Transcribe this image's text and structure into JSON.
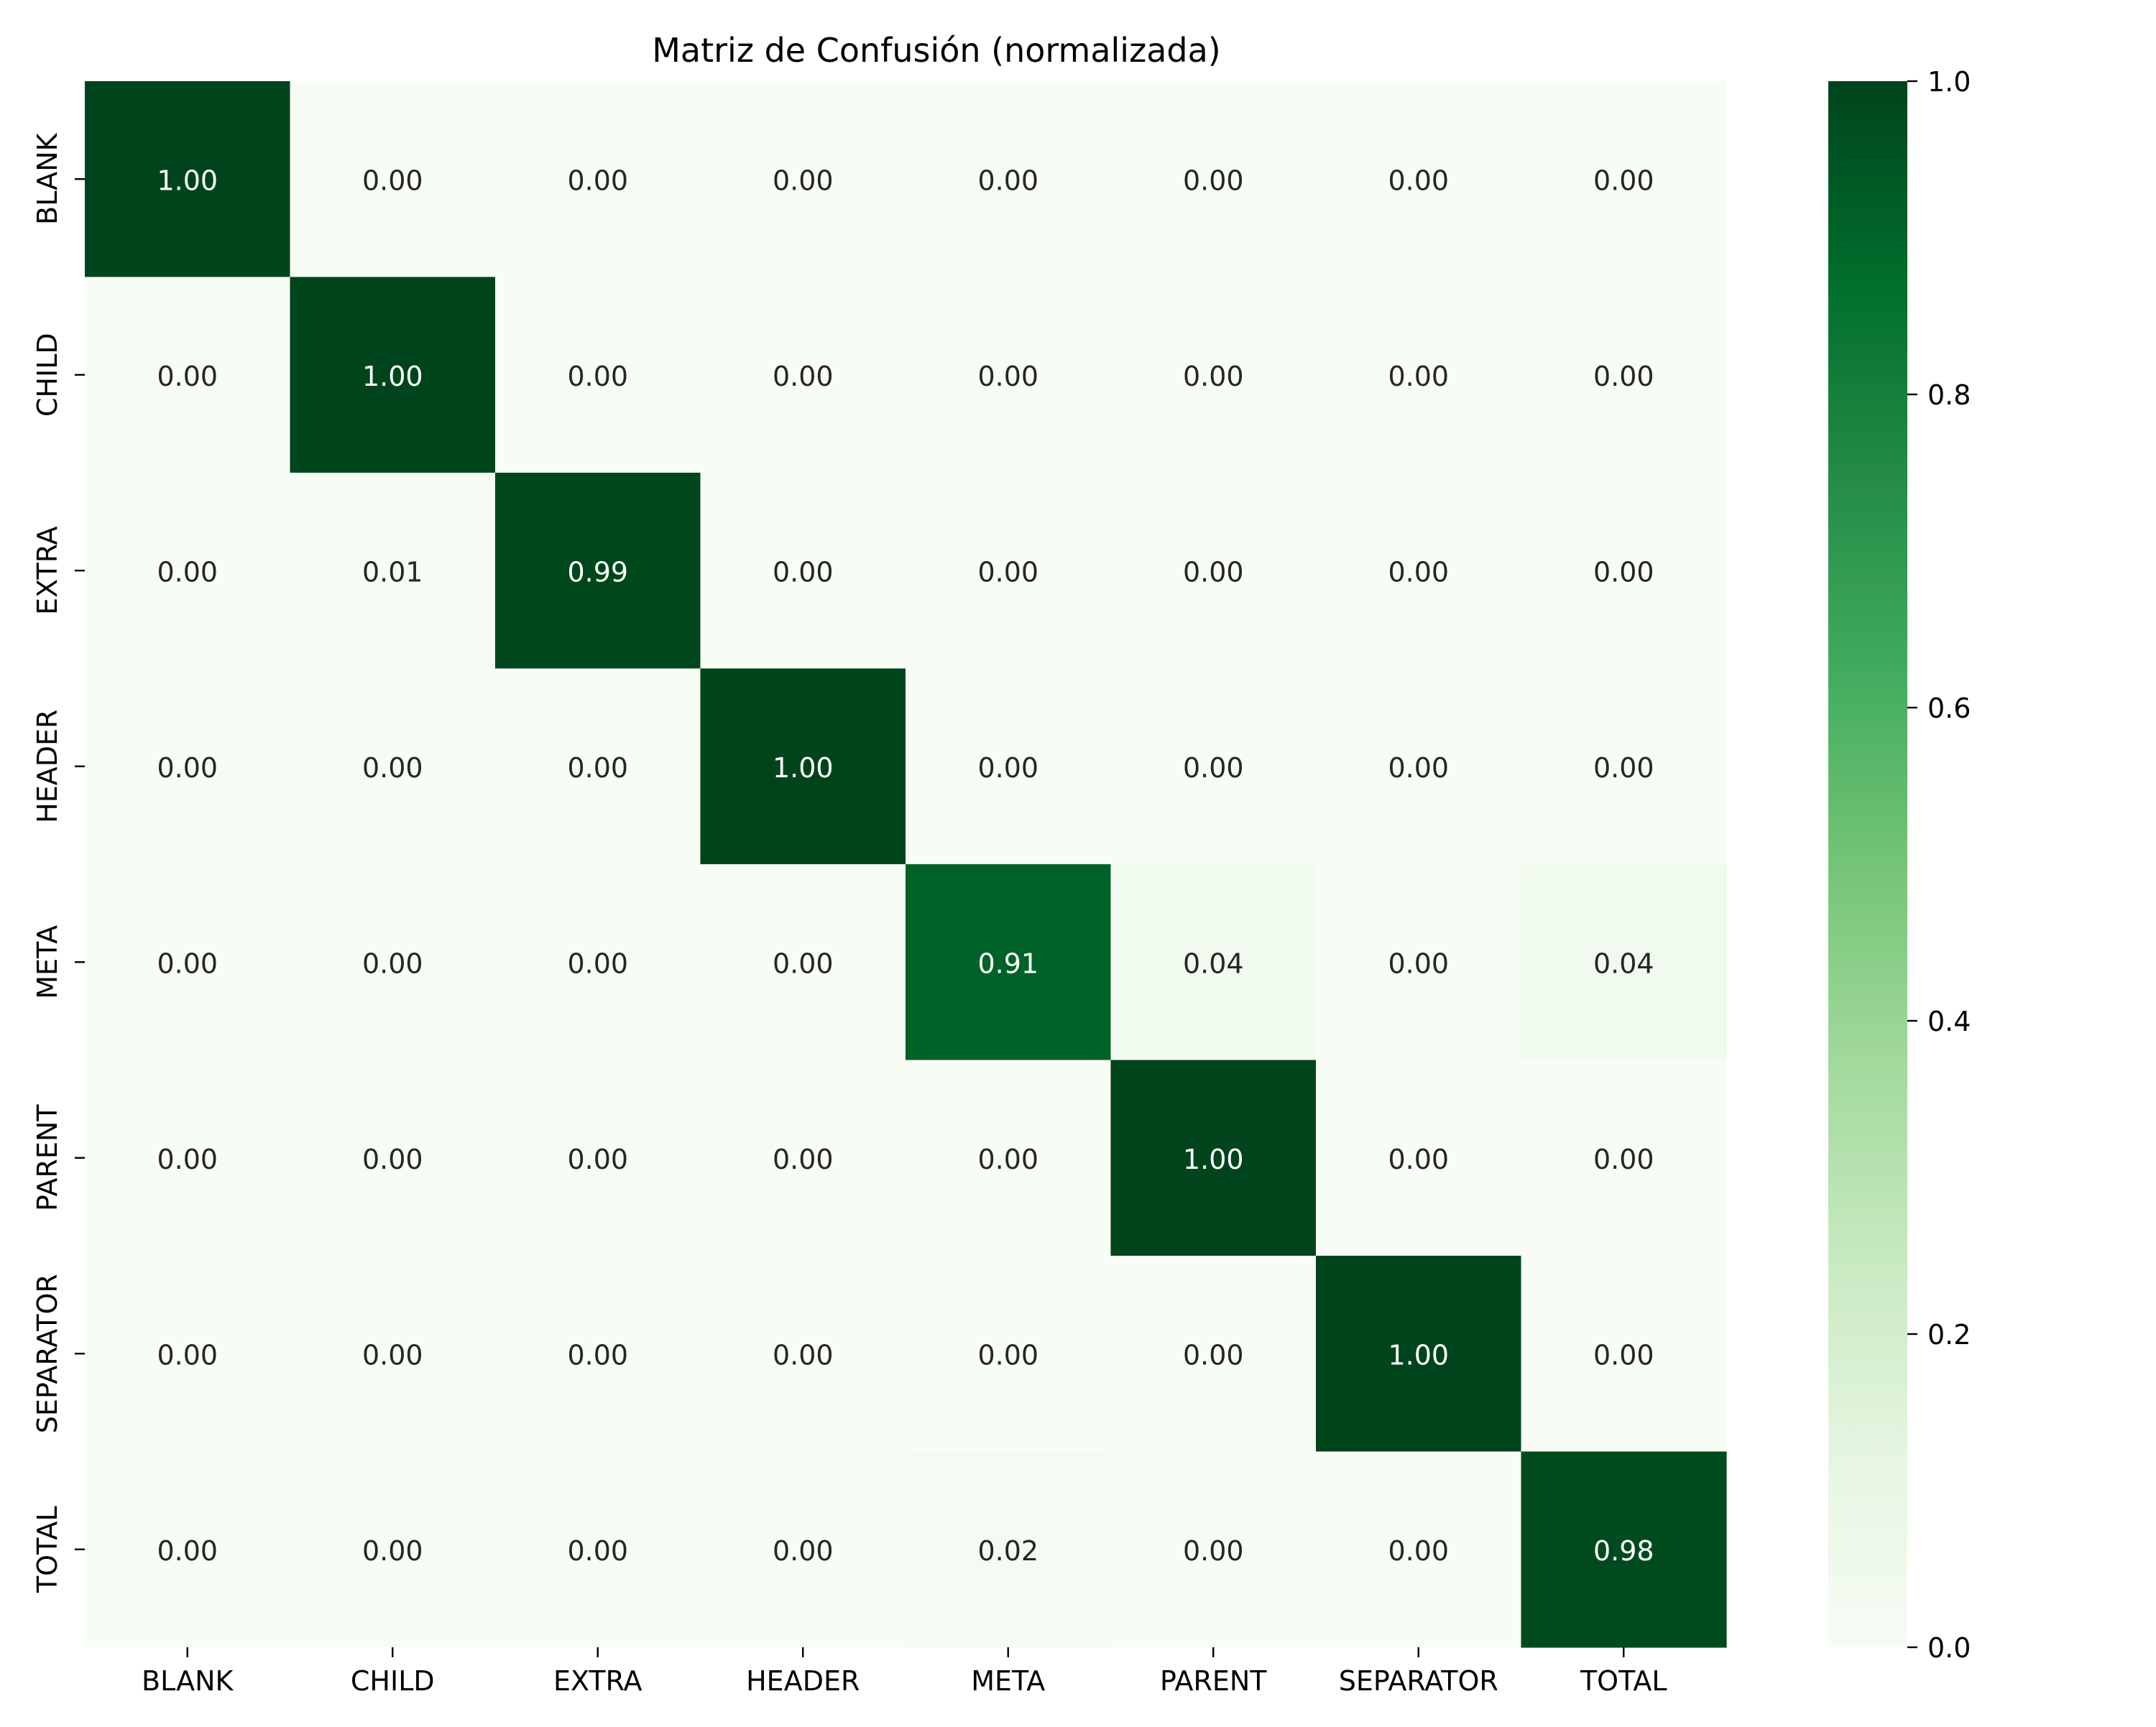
{
  "chart_data": {
    "type": "heatmap",
    "title": "Matriz de Confusión (normalizada)",
    "xlabel": "",
    "ylabel": "",
    "x_categories": [
      "BLANK",
      "CHILD",
      "EXTRA",
      "HEADER",
      "META",
      "PARENT",
      "SEPARATOR",
      "TOTAL"
    ],
    "y_categories": [
      "BLANK",
      "CHILD",
      "EXTRA",
      "HEADER",
      "META",
      "PARENT",
      "SEPARATOR",
      "TOTAL"
    ],
    "values": [
      [
        1.0,
        0.0,
        0.0,
        0.0,
        0.0,
        0.0,
        0.0,
        0.0
      ],
      [
        0.0,
        1.0,
        0.0,
        0.0,
        0.0,
        0.0,
        0.0,
        0.0
      ],
      [
        0.0,
        0.01,
        0.99,
        0.0,
        0.0,
        0.0,
        0.0,
        0.0
      ],
      [
        0.0,
        0.0,
        0.0,
        1.0,
        0.0,
        0.0,
        0.0,
        0.0
      ],
      [
        0.0,
        0.0,
        0.0,
        0.0,
        0.91,
        0.04,
        0.0,
        0.04
      ],
      [
        0.0,
        0.0,
        0.0,
        0.0,
        0.0,
        1.0,
        0.0,
        0.0
      ],
      [
        0.0,
        0.0,
        0.0,
        0.0,
        0.0,
        0.0,
        1.0,
        0.0
      ],
      [
        0.0,
        0.0,
        0.0,
        0.0,
        0.02,
        0.0,
        0.0,
        0.98
      ]
    ],
    "value_format": "0.00",
    "colormap": "Greens",
    "color_stops": [
      "#f7fcf5",
      "#e5f5e0",
      "#c7e9c0",
      "#a1d99b",
      "#74c476",
      "#41ab5d",
      "#238b45",
      "#006d2c",
      "#00441b"
    ],
    "annotation_colors": {
      "light_cell": "#262626",
      "dark_cell": "#ffffff"
    },
    "colorbar": {
      "min": 0.0,
      "max": 1.0,
      "ticks": [
        0.0,
        0.2,
        0.4,
        0.6,
        0.8,
        1.0
      ],
      "tick_labels": [
        "0.0",
        "0.2",
        "0.4",
        "0.6",
        "0.8",
        "1.0"
      ]
    },
    "grid": false,
    "legend": "colorbar-right"
  }
}
